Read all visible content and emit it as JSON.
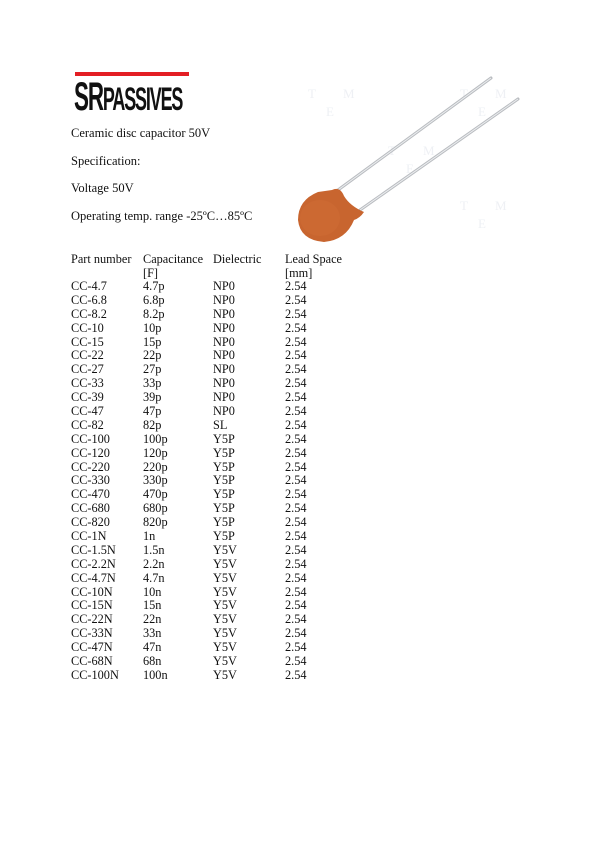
{
  "logo": {
    "text_big": "SR",
    "text_small": "PASSIVES",
    "accent": "#e31e24"
  },
  "title": "Ceramic disc capacitor 50V",
  "spec_label": "Specification:",
  "voltage": "Voltage 50V",
  "temp_range": "Operating temp. range -25ºC…85ºC",
  "image": {
    "subject": "ceramic-disc-capacitor",
    "body_color": "#c8652f",
    "watermark": "TME"
  },
  "table": {
    "headers": [
      {
        "line1": "Part number",
        "line2": ""
      },
      {
        "line1": "Capacitance",
        "line2": "[F]"
      },
      {
        "line1": "Dielectric",
        "line2": ""
      },
      {
        "line1": "Lead Space",
        "line2": "[mm]"
      }
    ],
    "rows": [
      [
        "CC-4.7",
        "4.7p",
        "NP0",
        "2.54"
      ],
      [
        "CC-6.8",
        "6.8p",
        "NP0",
        "2.54"
      ],
      [
        "CC-8.2",
        "8.2p",
        "NP0",
        "2.54"
      ],
      [
        "CC-10",
        "10p",
        "NP0",
        "2.54"
      ],
      [
        "CC-15",
        "15p",
        "NP0",
        "2.54"
      ],
      [
        "CC-22",
        "22p",
        "NP0",
        "2.54"
      ],
      [
        "CC-27",
        "27p",
        "NP0",
        "2.54"
      ],
      [
        "CC-33",
        "33p",
        "NP0",
        "2.54"
      ],
      [
        "CC-39",
        "39p",
        "NP0",
        "2.54"
      ],
      [
        "CC-47",
        "47p",
        "NP0",
        "2.54"
      ],
      [
        "CC-82",
        "82p",
        "SL",
        "2.54"
      ],
      [
        "CC-100",
        "100p",
        "Y5P",
        "2.54"
      ],
      [
        "CC-120",
        "120p",
        "Y5P",
        "2.54"
      ],
      [
        "CC-220",
        "220p",
        "Y5P",
        "2.54"
      ],
      [
        "CC-330",
        "330p",
        "Y5P",
        "2.54"
      ],
      [
        "CC-470",
        "470p",
        "Y5P",
        "2.54"
      ],
      [
        "CC-680",
        "680p",
        "Y5P",
        "2.54"
      ],
      [
        "CC-820",
        "820p",
        "Y5P",
        "2.54"
      ],
      [
        "CC-1N",
        "1n",
        "Y5P",
        "2.54"
      ],
      [
        "CC-1.5N",
        "1.5n",
        "Y5V",
        "2.54"
      ],
      [
        "CC-2.2N",
        "2.2n",
        "Y5V",
        "2.54"
      ],
      [
        "CC-4.7N",
        "4.7n",
        "Y5V",
        "2.54"
      ],
      [
        "CC-10N",
        "10n",
        "Y5V",
        "2.54"
      ],
      [
        "CC-15N",
        "15n",
        "Y5V",
        "2.54"
      ],
      [
        "CC-22N",
        "22n",
        "Y5V",
        "2.54"
      ],
      [
        "CC-33N",
        "33n",
        "Y5V",
        "2.54"
      ],
      [
        "CC-47N",
        "47n",
        "Y5V",
        "2.54"
      ],
      [
        "CC-68N",
        "68n",
        "Y5V",
        "2.54"
      ],
      [
        "CC-100N",
        "100n",
        "Y5V",
        "2.54"
      ]
    ]
  }
}
